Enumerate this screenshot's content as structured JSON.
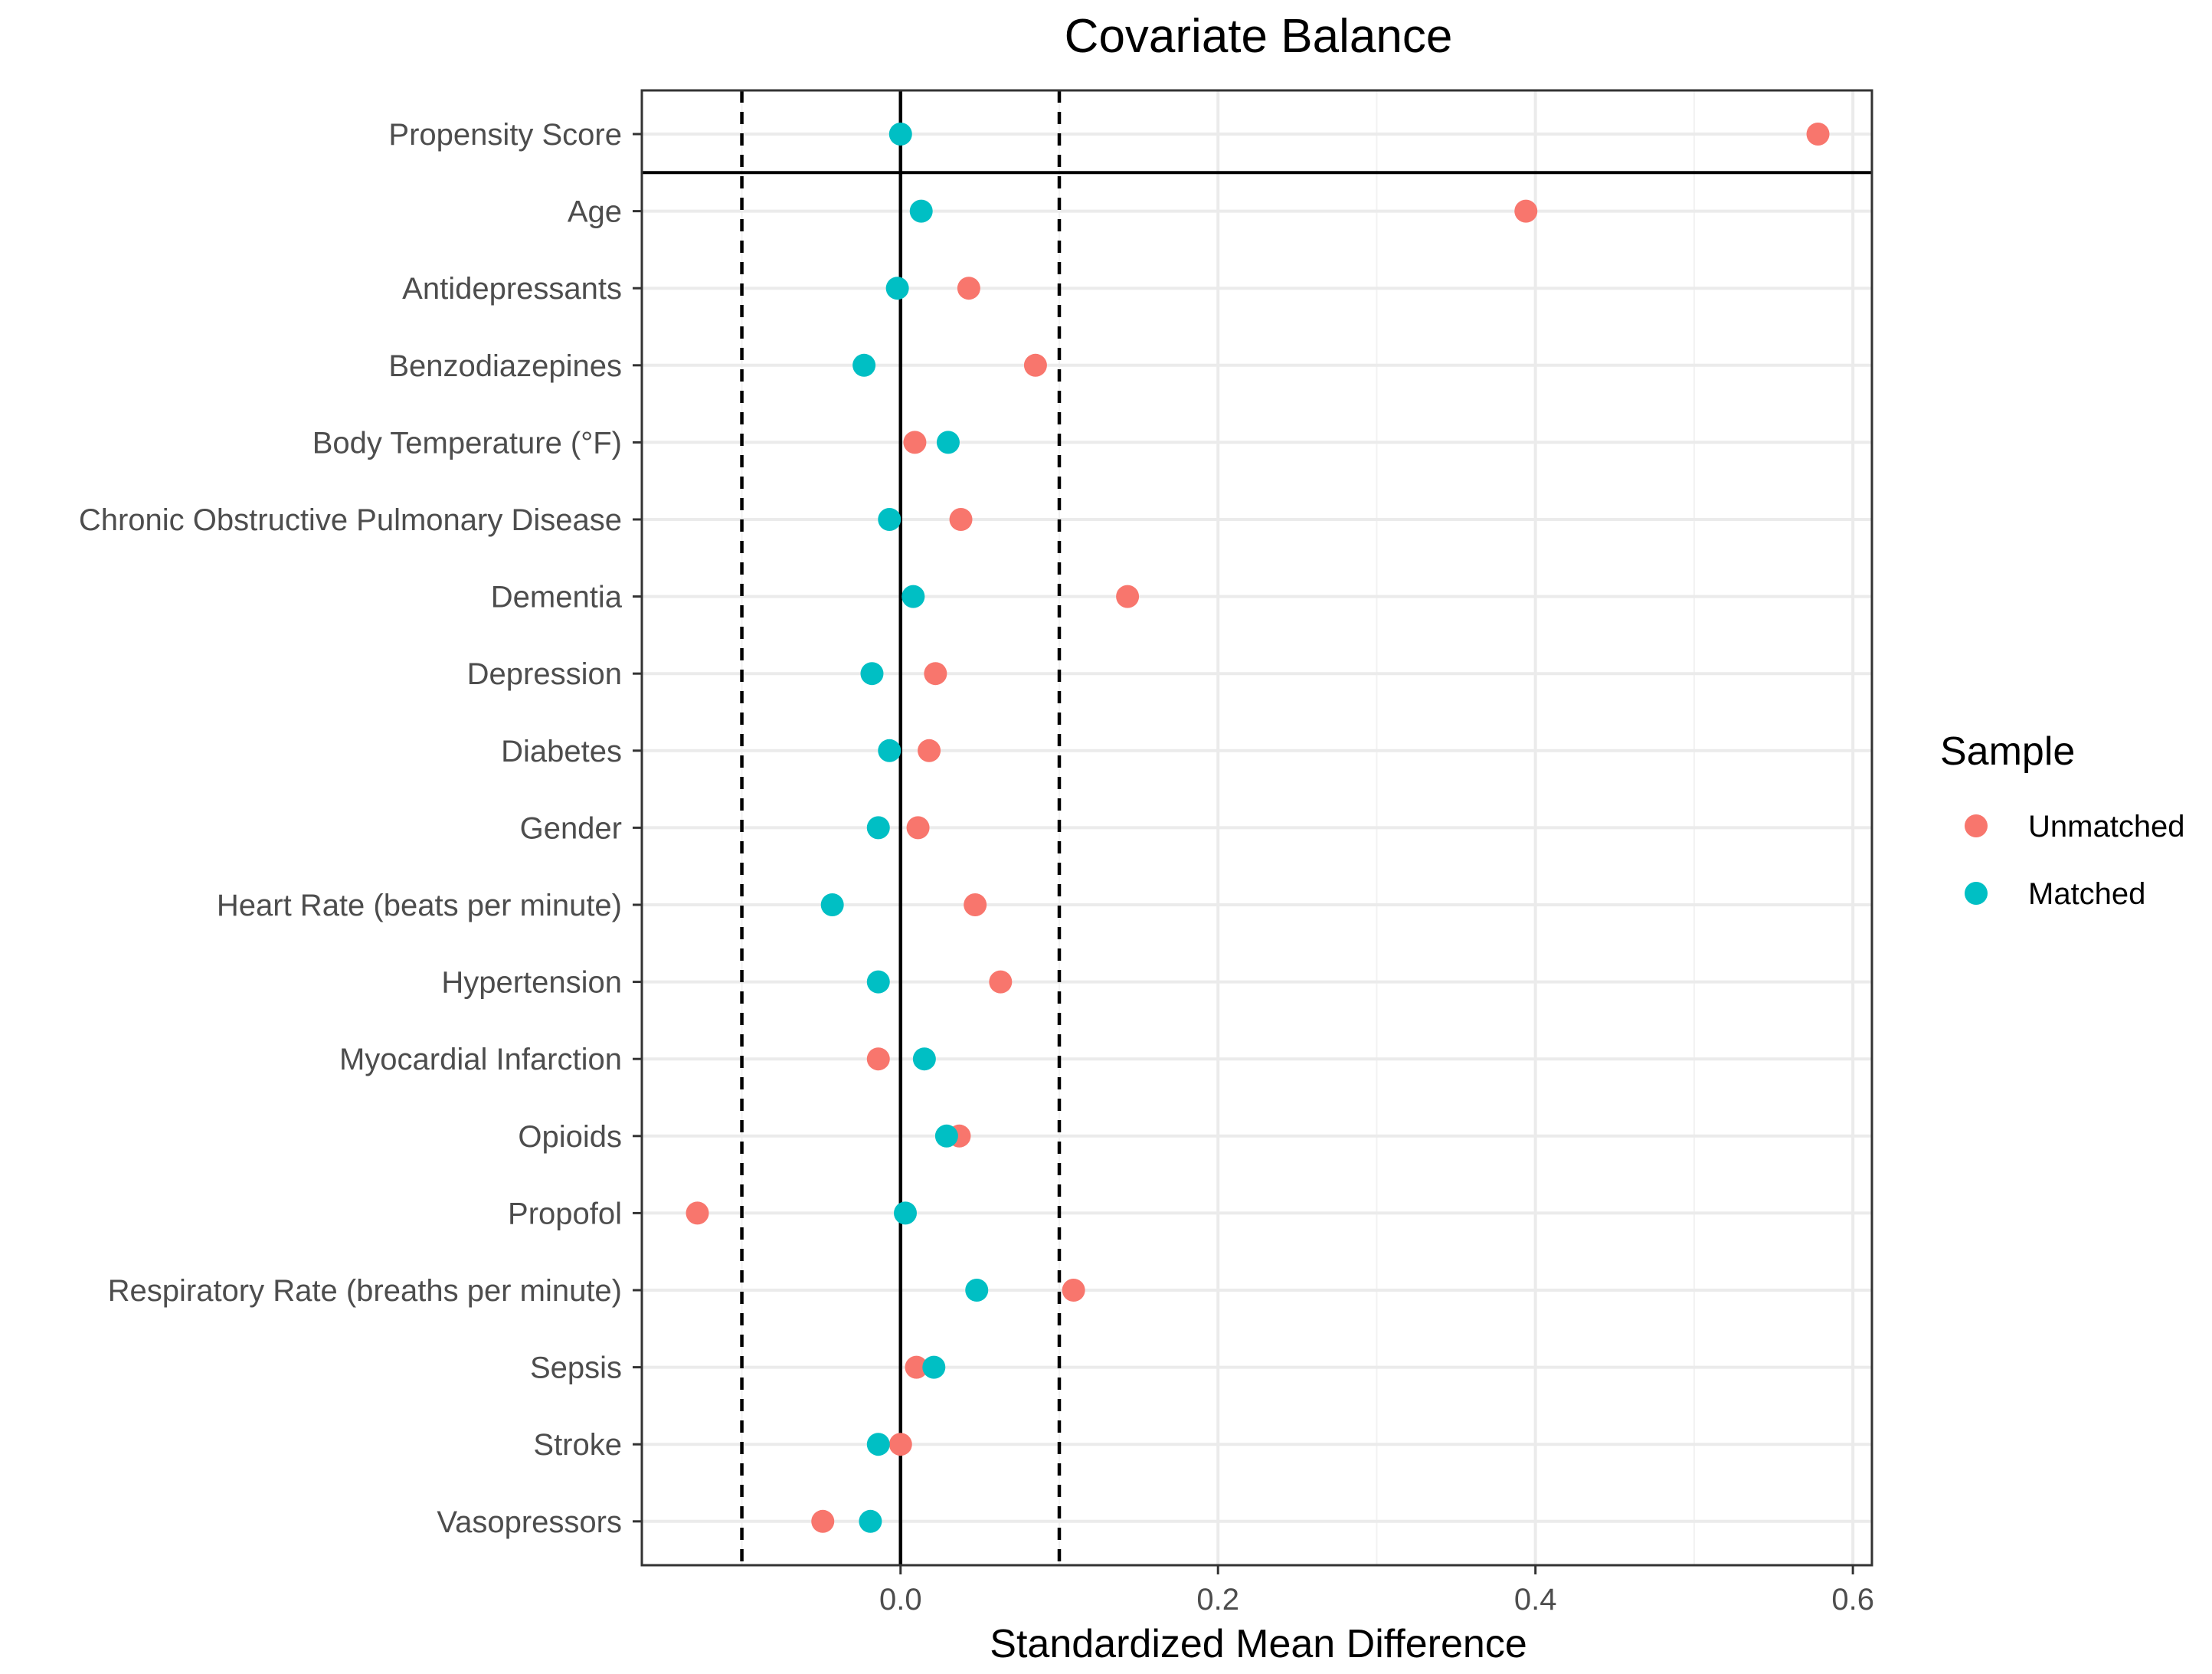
{
  "chart_data": {
    "type": "scatter",
    "title": "Covariate Balance",
    "xlabel": "Standardized Mean Difference",
    "ylabel": "",
    "xlim": [
      -0.163,
      0.612
    ],
    "xticks": [
      0.0,
      0.2,
      0.4,
      0.6
    ],
    "xtick_labels": [
      "0.0",
      "0.2",
      "0.4",
      "0.6"
    ],
    "threshold_lines": [
      -0.1,
      0.1
    ],
    "zero_line": 0,
    "grid": true,
    "legend_position": "right",
    "legend_title": "Sample",
    "categories": [
      "Propensity Score",
      "Age",
      "Antidepressants",
      "Benzodiazepines",
      "Body Temperature (°F)",
      "Chronic Obstructive Pulmonary Disease",
      "Dementia",
      "Depression",
      "Diabetes",
      "Gender",
      "Heart Rate (beats per minute)",
      "Hypertension",
      "Myocardial Infarction",
      "Opioids",
      "Propofol",
      "Respiratory Rate (breaths per minute)",
      "Sepsis",
      "Stroke",
      "Vasopressors"
    ],
    "series": [
      {
        "name": "Unmatched",
        "color": "#F8766D",
        "values": [
          0.578,
          0.394,
          0.043,
          0.085,
          0.009,
          0.038,
          0.143,
          0.022,
          0.018,
          0.011,
          0.047,
          0.063,
          -0.014,
          0.037,
          -0.128,
          0.109,
          0.01,
          0.0,
          -0.049
        ]
      },
      {
        "name": "Matched",
        "color": "#00BFC4",
        "values": [
          0.0,
          0.013,
          -0.002,
          -0.023,
          0.03,
          -0.007,
          0.008,
          -0.018,
          -0.007,
          -0.014,
          -0.043,
          -0.014,
          0.015,
          0.029,
          0.003,
          0.048,
          0.021,
          -0.014,
          -0.019
        ]
      }
    ]
  }
}
